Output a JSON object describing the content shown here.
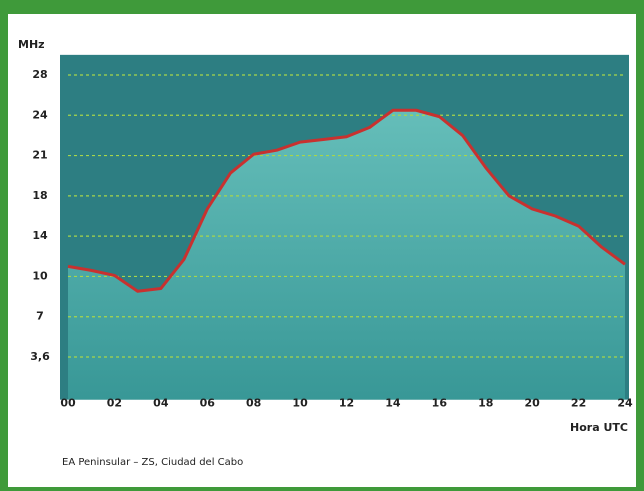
{
  "chart_data": {
    "type": "line",
    "y_label": "MHz",
    "x_label": "Hora UTC",
    "caption": "EA Peninsular – ZS, Ciudad del Cabo",
    "x": [
      0,
      1,
      2,
      3,
      4,
      5,
      6,
      7,
      8,
      9,
      10,
      11,
      12,
      13,
      14,
      15,
      16,
      17,
      18,
      19,
      20,
      21,
      22,
      23,
      24
    ],
    "series": [
      {
        "color": "#c8312f",
        "values": [
          11.0,
          10.6,
          10.1,
          8.9,
          9.1,
          11.7,
          16.7,
          19.7,
          21.1,
          21.4,
          22.0,
          22.2,
          22.4,
          23.1,
          24.5,
          24.5,
          23.9,
          22.5,
          20.1,
          18.0,
          16.7,
          16.0,
          15.0,
          12.9,
          11.2
        ]
      }
    ],
    "xlim": [
      0,
      24
    ],
    "xticks": [
      {
        "value": 0,
        "label": "00"
      },
      {
        "value": 2,
        "label": "02"
      },
      {
        "value": 4,
        "label": "04"
      },
      {
        "value": 6,
        "label": "06"
      },
      {
        "value": 8,
        "label": "08"
      },
      10,
      12,
      14,
      16,
      18,
      20,
      22,
      24
    ],
    "ylim": [
      0,
      30
    ],
    "yticks": [
      {
        "value": 3.6,
        "label": "3,6"
      },
      7,
      10,
      14,
      18,
      21,
      24,
      28
    ],
    "grid": true
  }
}
